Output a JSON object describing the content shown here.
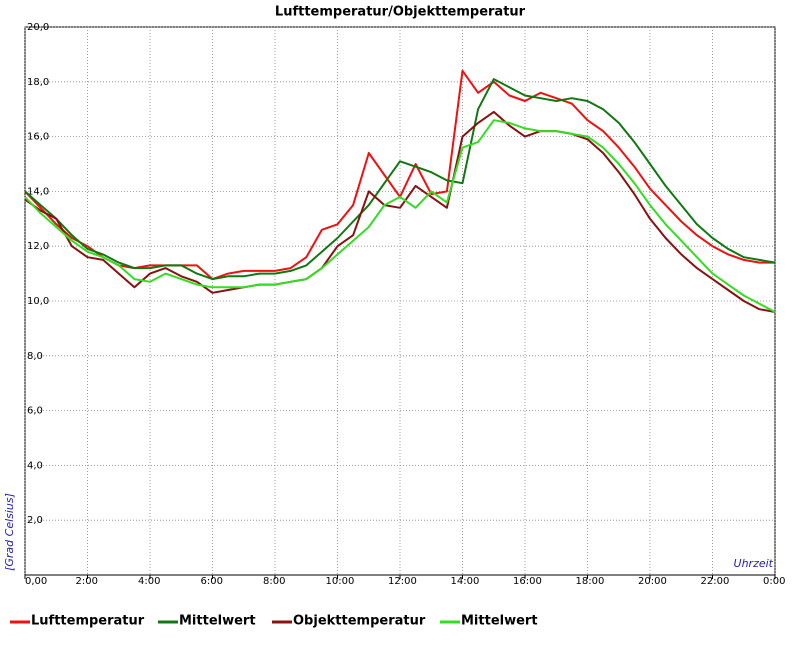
{
  "chart_data": {
    "type": "line",
    "title": "Lufttemperatur/Objekttemperatur",
    "y_label": "[Grad Celsius]",
    "x_label": "Uhrzeit",
    "x": [
      0,
      0.5,
      1,
      1.5,
      2,
      2.5,
      3,
      3.5,
      4,
      4.5,
      5,
      5.5,
      6,
      6.5,
      7,
      7.5,
      8,
      8.5,
      9,
      9.5,
      10,
      10.5,
      11,
      11.5,
      12,
      12.5,
      13,
      13.5,
      14,
      14.5,
      15,
      15.5,
      16,
      16.5,
      17,
      17.5,
      18,
      18.5,
      19,
      19.5,
      20,
      20.5,
      21,
      21.5,
      22,
      22.5,
      23,
      23.5,
      24
    ],
    "series": [
      {
        "name": "Lufttemperatur",
        "color": "#ee1111",
        "values": [
          14.0,
          13.4,
          12.8,
          12.3,
          12.0,
          11.6,
          11.3,
          11.2,
          11.3,
          11.3,
          11.3,
          11.3,
          10.8,
          11.0,
          11.1,
          11.1,
          11.1,
          11.2,
          11.6,
          12.6,
          12.8,
          13.5,
          15.4,
          14.6,
          13.8,
          15.0,
          13.9,
          14.0,
          18.4,
          17.6,
          18.0,
          17.5,
          17.3,
          17.6,
          17.4,
          17.2,
          16.6,
          16.2,
          15.6,
          14.9,
          14.1,
          13.5,
          12.9,
          12.4,
          12.0,
          11.7,
          11.5,
          11.4,
          11.4
        ]
      },
      {
        "name": "Mittelwert",
        "color": "#117711",
        "values": [
          14.0,
          13.5,
          13.0,
          12.4,
          11.9,
          11.7,
          11.4,
          11.2,
          11.2,
          11.3,
          11.3,
          11.0,
          10.8,
          10.9,
          10.9,
          11.0,
          11.0,
          11.1,
          11.3,
          11.8,
          12.3,
          12.9,
          13.5,
          14.3,
          15.1,
          14.9,
          14.7,
          14.4,
          14.3,
          17.0,
          18.1,
          17.8,
          17.5,
          17.4,
          17.3,
          17.4,
          17.3,
          17.0,
          16.5,
          15.8,
          15.0,
          14.2,
          13.5,
          12.8,
          12.3,
          11.9,
          11.6,
          11.5,
          11.4
        ]
      },
      {
        "name": "Objekttemperatur",
        "color": "#881111",
        "values": [
          13.7,
          13.3,
          13.0,
          12.0,
          11.6,
          11.5,
          11.0,
          10.5,
          11.0,
          11.2,
          10.9,
          10.7,
          10.3,
          10.4,
          10.5,
          10.6,
          10.6,
          10.7,
          10.8,
          11.2,
          12.0,
          12.4,
          14.0,
          13.5,
          13.4,
          14.2,
          13.8,
          13.4,
          16.0,
          16.5,
          16.9,
          16.4,
          16.0,
          16.2,
          16.2,
          16.1,
          15.9,
          15.4,
          14.7,
          13.9,
          13.0,
          12.3,
          11.7,
          11.2,
          10.8,
          10.4,
          10.0,
          9.7,
          9.6
        ]
      },
      {
        "name": "Mittelwert",
        "color": "#33dd22",
        "values": [
          13.8,
          13.2,
          12.7,
          12.2,
          11.8,
          11.6,
          11.3,
          10.8,
          10.7,
          11.0,
          10.8,
          10.6,
          10.5,
          10.5,
          10.5,
          10.6,
          10.6,
          10.7,
          10.8,
          11.2,
          11.7,
          12.2,
          12.7,
          13.5,
          13.8,
          13.4,
          14.0,
          13.6,
          15.6,
          15.8,
          16.6,
          16.5,
          16.3,
          16.2,
          16.2,
          16.1,
          16.0,
          15.6,
          15.0,
          14.3,
          13.5,
          12.8,
          12.2,
          11.6,
          11.0,
          10.6,
          10.2,
          9.9,
          9.6
        ]
      }
    ],
    "xlim": [
      0,
      24
    ],
    "xticks": [
      {
        "value": 0,
        "label": "0,00"
      },
      {
        "value": 2,
        "label": "2:00"
      },
      {
        "value": 4,
        "label": "4:00"
      },
      {
        "value": 6,
        "label": "6:00"
      },
      {
        "value": 8,
        "label": "8:00"
      },
      {
        "value": 10,
        "label": "10:00"
      },
      {
        "value": 12,
        "label": "12:00"
      },
      {
        "value": 14,
        "label": "14:00"
      },
      {
        "value": 16,
        "label": "16:00"
      },
      {
        "value": 18,
        "label": "18:00"
      },
      {
        "value": 20,
        "label": "20:00"
      },
      {
        "value": 22,
        "label": "22:00"
      },
      {
        "value": 24,
        "label": "0:00"
      }
    ],
    "ylim": [
      0,
      20
    ],
    "yticks": [
      {
        "value": 2,
        "label": "2,0"
      },
      {
        "value": 4,
        "label": "4,0"
      },
      {
        "value": 6,
        "label": "6,0"
      },
      {
        "value": 8,
        "label": "8,0"
      },
      {
        "value": 10,
        "label": "10,0"
      },
      {
        "value": 12,
        "label": "12,0"
      },
      {
        "value": 14,
        "label": "14,0"
      },
      {
        "value": 16,
        "label": "16,0"
      },
      {
        "value": 18,
        "label": "18,0"
      },
      {
        "value": 20,
        "label": "20,0"
      }
    ],
    "grid": true,
    "legend": "bottom"
  }
}
